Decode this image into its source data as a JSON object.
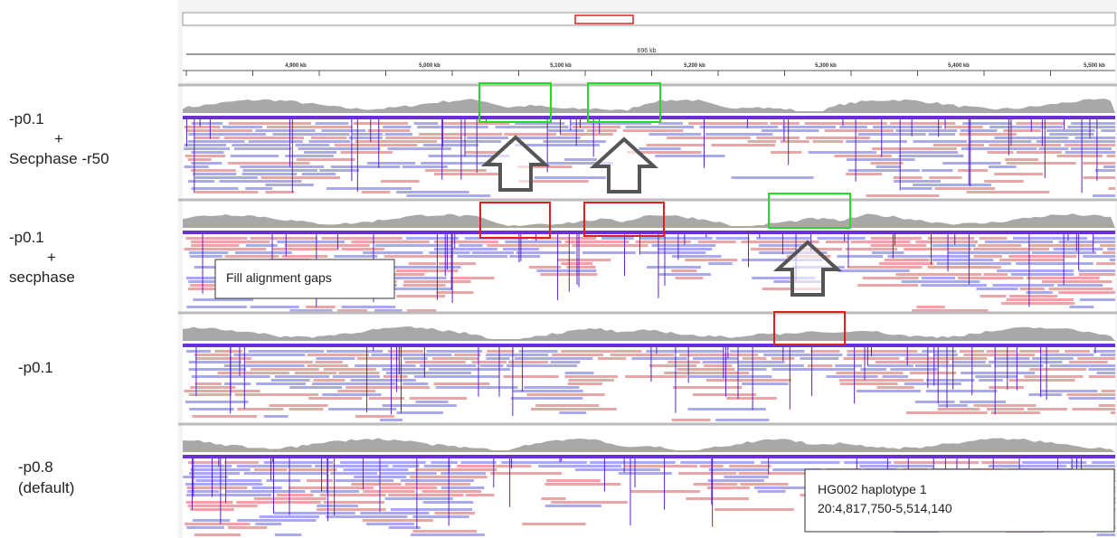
{
  "labels": [
    {
      "lines": [
        "-p0.1",
        "+",
        "Secphase -r50"
      ]
    },
    {
      "lines": [
        "-p0.1",
        "+",
        "secphase"
      ]
    },
    {
      "lines": [
        "-p0.1"
      ]
    },
    {
      "lines": [
        "-p0.8",
        "(default)"
      ]
    }
  ],
  "ruler": {
    "span": "696 kb",
    "ticks": [
      "4,900 kb",
      "5,000 kb",
      "5,100 kb",
      "5,200 kb",
      "5,300 kb",
      "5,400 kb",
      "5,500 kb"
    ]
  },
  "annotations": {
    "fill_gaps": "Fill alignment gaps",
    "info": [
      "HG002 haplotype 1",
      "20:4,817,750-5,514,140"
    ]
  }
}
